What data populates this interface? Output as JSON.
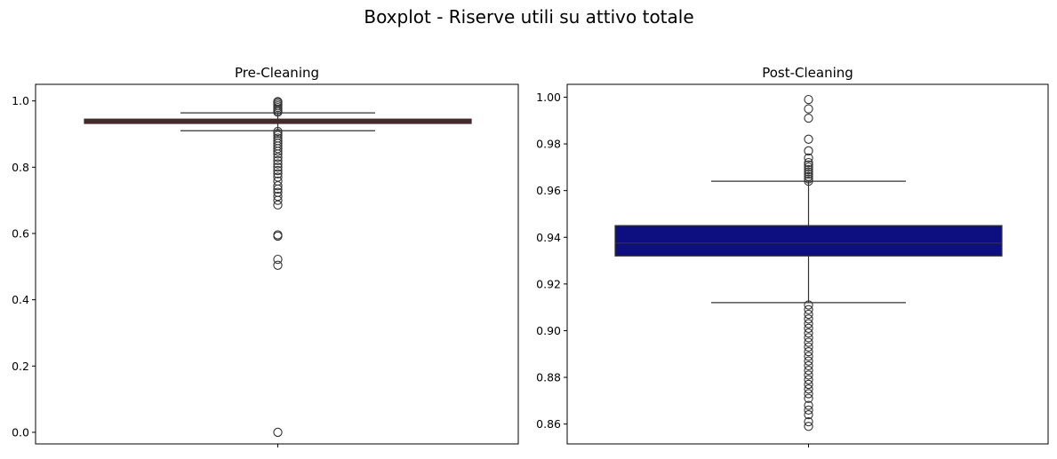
{
  "figure": {
    "title": "Boxplot - Riserve utili su attivo totale"
  },
  "chart_data": [
    {
      "type": "box",
      "title": "Pre-Cleaning",
      "ylim": [
        -0.035,
        1.05
      ],
      "yticks": [
        0.0,
        0.2,
        0.4,
        0.6,
        0.8,
        1.0
      ],
      "ytick_labels": [
        "0.0",
        "0.2",
        "0.4",
        "0.6",
        "0.8",
        "1.0"
      ],
      "box": {
        "whisker_low": 0.91,
        "q1": 0.932,
        "median": 0.9375,
        "q3": 0.945,
        "whisker_high": 0.964
      },
      "outliers": [
        0.0,
        0.504,
        0.522,
        0.592,
        0.596,
        0.686,
        0.7,
        0.712,
        0.724,
        0.734,
        0.744,
        0.758,
        0.77,
        0.78,
        0.79,
        0.8,
        0.81,
        0.82,
        0.83,
        0.84,
        0.848,
        0.856,
        0.864,
        0.872,
        0.88,
        0.888,
        0.896,
        0.902,
        0.908,
        0.966,
        0.97,
        0.975,
        0.98,
        0.985,
        0.99,
        0.995,
        0.998
      ],
      "box_color": "#6b1a1f",
      "grid": false
    },
    {
      "type": "box",
      "title": "Post-Cleaning",
      "ylim": [
        0.8515,
        1.0055
      ],
      "yticks": [
        0.86,
        0.88,
        0.9,
        0.92,
        0.94,
        0.96,
        0.98,
        1.0
      ],
      "ytick_labels": [
        "0.86",
        "0.88",
        "0.90",
        "0.92",
        "0.94",
        "0.96",
        "0.98",
        "1.00"
      ],
      "box": {
        "whisker_low": 0.912,
        "q1": 0.932,
        "median": 0.9375,
        "q3": 0.945,
        "whisker_high": 0.964
      },
      "outliers": [
        0.859,
        0.861,
        0.864,
        0.866,
        0.868,
        0.871,
        0.873,
        0.875,
        0.877,
        0.879,
        0.881,
        0.883,
        0.885,
        0.887,
        0.889,
        0.891,
        0.893,
        0.895,
        0.897,
        0.899,
        0.901,
        0.903,
        0.905,
        0.907,
        0.909,
        0.911,
        0.964,
        0.965,
        0.966,
        0.967,
        0.968,
        0.969,
        0.97,
        0.971,
        0.972,
        0.974,
        0.977,
        0.982,
        0.991,
        0.995,
        0.999
      ],
      "box_color": "#0d0f80",
      "grid": false
    }
  ]
}
